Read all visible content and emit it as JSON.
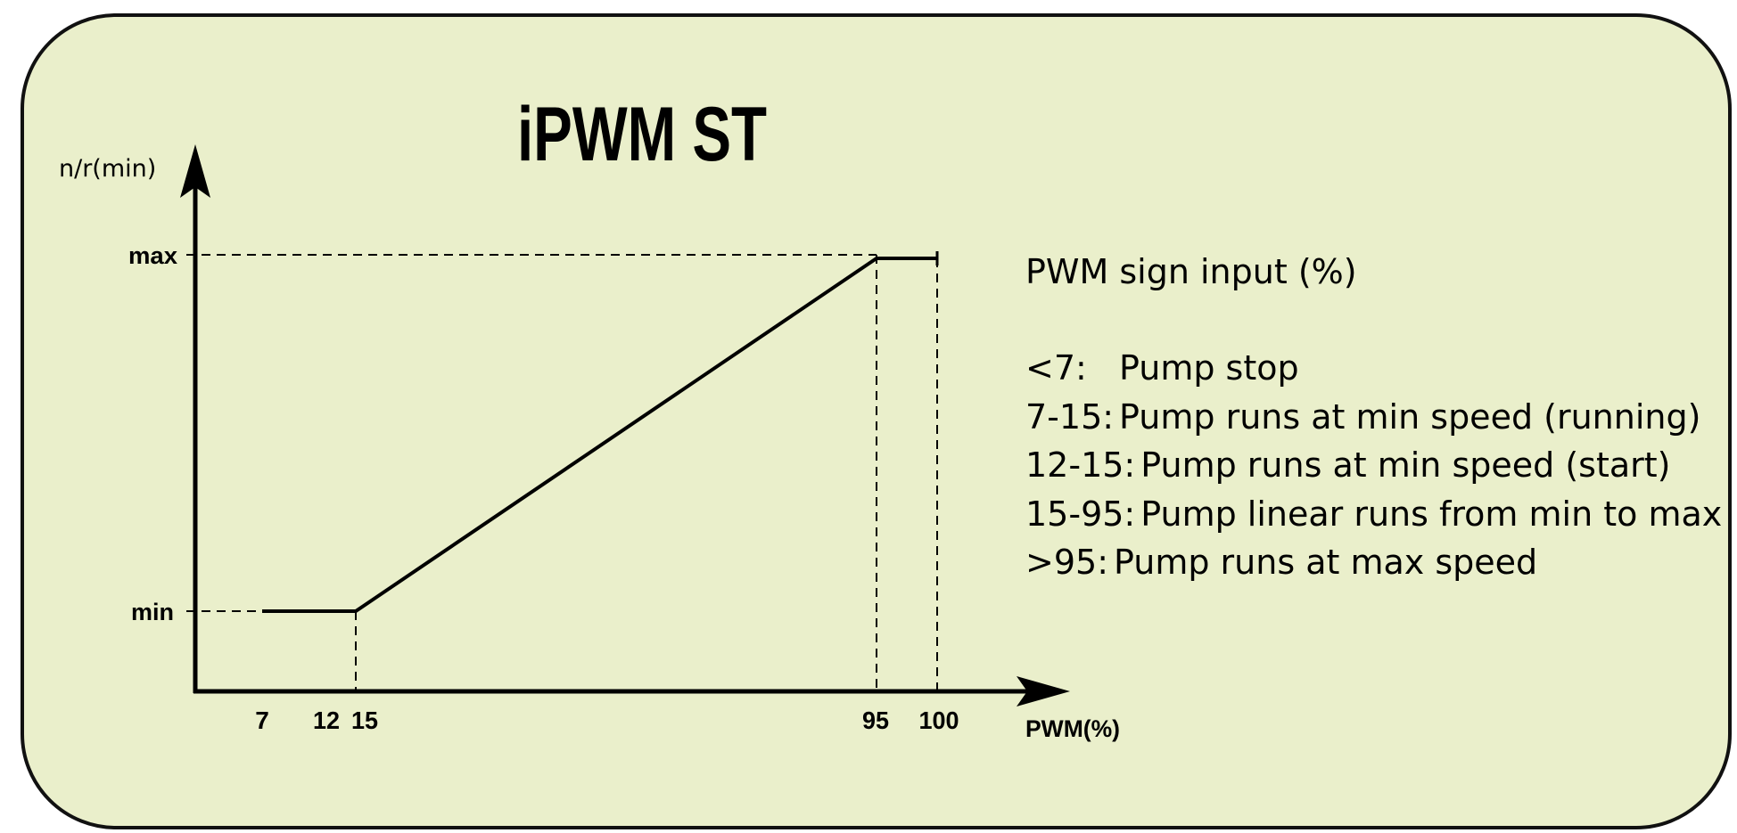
{
  "title": "iPWM ST",
  "y_axis_label": "n/r(min)",
  "x_axis_label": "PWM(%)",
  "y_labels": [
    "max",
    "min"
  ],
  "x_labels": [
    "7",
    "12",
    "15",
    "95",
    "100"
  ],
  "legend": {
    "heading": "PWM sign input (%)",
    "items": [
      {
        "range": "<7:",
        "text": "Pump stop"
      },
      {
        "range": "7-15:",
        "text": "Pump runs at min speed (running)"
      },
      {
        "range": "12-15:",
        "text": "Pump runs at min speed (start)"
      },
      {
        "range": "15-95:",
        "text": "Pump linear runs from min to max"
      },
      {
        "range": ">95:",
        "text": "Pump runs at max speed"
      }
    ]
  }
}
